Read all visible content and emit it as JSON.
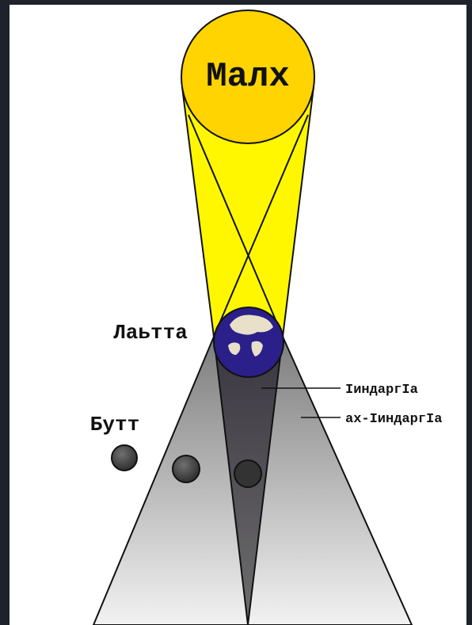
{
  "sun": {
    "label": "Малх"
  },
  "earth": {
    "label": "Лаьтта"
  },
  "moon": {
    "label": "Бутт"
  },
  "umbra": {
    "label": "IиндаргIа"
  },
  "penumbra": {
    "label": "ах-IиндаргIа"
  }
}
